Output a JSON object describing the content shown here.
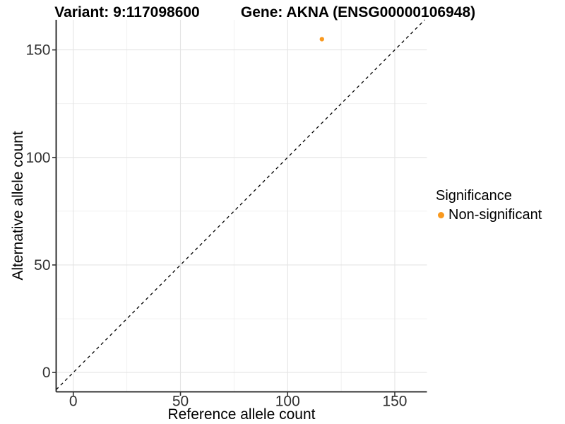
{
  "chart_data": {
    "type": "scatter",
    "title_left": "Variant: 9:117098600",
    "title_right": "Gene: AKNA (ENSG00000106948)",
    "xlabel": "Reference allele count",
    "ylabel": "Alternative allele count",
    "axis_range": {
      "xlim": [
        -8,
        165
      ],
      "ylim": [
        -9,
        164
      ]
    },
    "x_ticks": [
      0,
      50,
      100,
      150
    ],
    "y_ticks": [
      0,
      50,
      100,
      150
    ],
    "x_minor_ticks": [
      25,
      75,
      125
    ],
    "y_minor_ticks": [
      25,
      75,
      125
    ],
    "grid": "major and minor, light gray on white",
    "reference_line": {
      "kind": "identity y=x",
      "style": "dashed",
      "color": "#000000"
    },
    "series": [
      {
        "name": "Non-significant",
        "color": "#F9991F",
        "point_radius": 3.2,
        "points": [
          {
            "x": 116,
            "y": 155
          }
        ]
      }
    ],
    "legend": {
      "title": "Significance",
      "position": "right",
      "items": [
        {
          "label": "Non-significant",
          "color": "#F9991F"
        }
      ]
    }
  },
  "style": {
    "background": "#FFFFFF",
    "grid_major_color": "#E4E4E4",
    "grid_minor_color": "#EFEFEF",
    "axis_line_color": "#1A1A1A",
    "tick_mark_color": "#333333",
    "tick_label_color": "#303030",
    "reference_line_color": "#000000"
  }
}
